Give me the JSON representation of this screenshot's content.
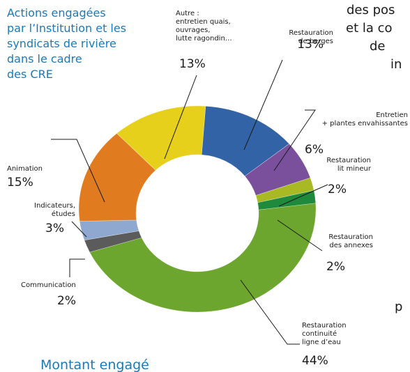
{
  "chart_data": {
    "type": "pie",
    "donut": true,
    "title": "Actions engagées\npar l’Institution et les\nsyndicats de rivière\ndans le cadre\ndes CRE",
    "subtitle": "Montant engagé",
    "categories": [
      "Restauration\nde berges",
      "Entretien\n+ plantes envahissantes",
      "Restauration\nlit mineur",
      "Restauration\ndes annexes",
      "Restauration\ncontinuité\nligne d’eau",
      "Communication",
      "Indicateurs,\nétudes",
      "Animation",
      "Autre :\nentretien quais,\nouvrages,\nlutte ragondin…"
    ],
    "values": [
      13,
      6,
      2,
      2,
      44,
      2,
      3,
      15,
      13
    ],
    "value_labels": [
      "13%",
      "6%",
      "2%",
      "2%",
      "44%",
      "2%",
      "3%",
      "15%",
      "13%"
    ],
    "colors": [
      "#3263a6",
      "#7a4f9c",
      "#a9b923",
      "#1f8a3c",
      "#6ca62e",
      "#5b5b5b",
      "#8fa8d0",
      "#e07b20",
      "#e7d01c"
    ]
  },
  "page_text": [
    "des pos",
    "et la co",
    "de",
    "in",
    "p"
  ]
}
